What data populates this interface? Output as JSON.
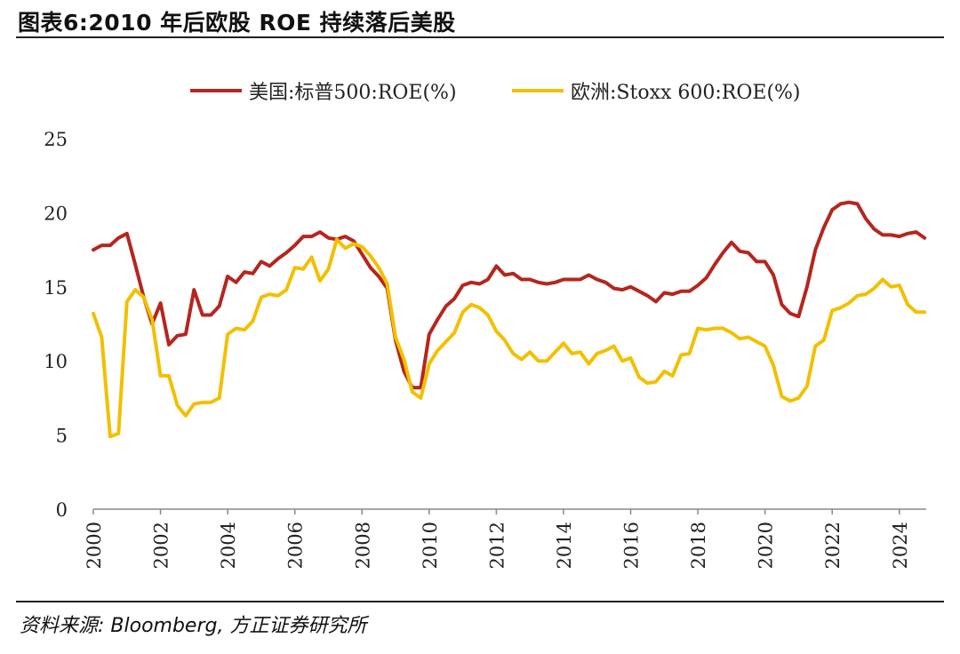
{
  "header": {
    "title": "图表6:2010 年后欧股 ROE 持续落后美股"
  },
  "footer": {
    "source": "资料来源: Bloomberg, 方正证券研究所"
  },
  "chart_data": {
    "type": "line",
    "title": "图表6:2010 年后欧股 ROE 持续落后美股",
    "xlabel": "",
    "ylabel": "",
    "xlim": [
      2000,
      2024.8
    ],
    "ylim": [
      0,
      25
    ],
    "yticks": [
      0,
      5,
      10,
      15,
      20,
      25
    ],
    "xticks": [
      2000,
      2002,
      2004,
      2006,
      2008,
      2010,
      2012,
      2014,
      2016,
      2018,
      2020,
      2022,
      2024
    ],
    "xtick_labels": [
      "2000",
      "2002",
      "2004",
      "2006",
      "2008",
      "2010",
      "2012",
      "2014",
      "2016",
      "2018",
      "2020",
      "2022",
      "2024"
    ],
    "legend_position": "top-center",
    "series": [
      {
        "name": "美国:标普500:ROE(%)",
        "color": "#b5261e",
        "points": [
          [
            2000.0,
            17.5
          ],
          [
            2000.25,
            17.8
          ],
          [
            2000.5,
            17.8
          ],
          [
            2000.75,
            18.3
          ],
          [
            2001.0,
            18.6
          ],
          [
            2001.25,
            16.5
          ],
          [
            2001.5,
            14.3
          ],
          [
            2001.75,
            12.5
          ],
          [
            2002.0,
            13.9
          ],
          [
            2002.25,
            11.1
          ],
          [
            2002.5,
            11.7
          ],
          [
            2002.75,
            11.8
          ],
          [
            2003.0,
            14.8
          ],
          [
            2003.25,
            13.1
          ],
          [
            2003.5,
            13.1
          ],
          [
            2003.75,
            13.7
          ],
          [
            2004.0,
            15.7
          ],
          [
            2004.25,
            15.3
          ],
          [
            2004.5,
            16.0
          ],
          [
            2004.75,
            15.9
          ],
          [
            2005.0,
            16.7
          ],
          [
            2005.25,
            16.4
          ],
          [
            2005.5,
            16.9
          ],
          [
            2005.75,
            17.3
          ],
          [
            2006.0,
            17.8
          ],
          [
            2006.25,
            18.4
          ],
          [
            2006.5,
            18.4
          ],
          [
            2006.75,
            18.7
          ],
          [
            2007.0,
            18.3
          ],
          [
            2007.25,
            18.2
          ],
          [
            2007.5,
            18.4
          ],
          [
            2007.75,
            18.1
          ],
          [
            2008.0,
            17.2
          ],
          [
            2008.25,
            16.3
          ],
          [
            2008.5,
            15.7
          ],
          [
            2008.75,
            14.9
          ],
          [
            2009.0,
            11.4
          ],
          [
            2009.25,
            9.3
          ],
          [
            2009.5,
            8.2
          ],
          [
            2009.75,
            8.2
          ],
          [
            2010.0,
            11.8
          ],
          [
            2010.25,
            12.8
          ],
          [
            2010.5,
            13.7
          ],
          [
            2010.75,
            14.2
          ],
          [
            2011.0,
            15.1
          ],
          [
            2011.25,
            15.3
          ],
          [
            2011.5,
            15.2
          ],
          [
            2011.75,
            15.5
          ],
          [
            2012.0,
            16.4
          ],
          [
            2012.25,
            15.8
          ],
          [
            2012.5,
            15.9
          ],
          [
            2012.75,
            15.5
          ],
          [
            2013.0,
            15.5
          ],
          [
            2013.25,
            15.3
          ],
          [
            2013.5,
            15.2
          ],
          [
            2013.75,
            15.3
          ],
          [
            2014.0,
            15.5
          ],
          [
            2014.25,
            15.5
          ],
          [
            2014.5,
            15.5
          ],
          [
            2014.75,
            15.8
          ],
          [
            2015.0,
            15.5
          ],
          [
            2015.25,
            15.3
          ],
          [
            2015.5,
            14.9
          ],
          [
            2015.75,
            14.8
          ],
          [
            2016.0,
            15.0
          ],
          [
            2016.25,
            14.7
          ],
          [
            2016.5,
            14.4
          ],
          [
            2016.75,
            14.0
          ],
          [
            2017.0,
            14.6
          ],
          [
            2017.25,
            14.5
          ],
          [
            2017.5,
            14.7
          ],
          [
            2017.75,
            14.7
          ],
          [
            2018.0,
            15.1
          ],
          [
            2018.25,
            15.6
          ],
          [
            2018.5,
            16.5
          ],
          [
            2018.75,
            17.3
          ],
          [
            2019.0,
            18.0
          ],
          [
            2019.25,
            17.4
          ],
          [
            2019.5,
            17.3
          ],
          [
            2019.75,
            16.7
          ],
          [
            2020.0,
            16.7
          ],
          [
            2020.25,
            15.8
          ],
          [
            2020.5,
            13.8
          ],
          [
            2020.75,
            13.2
          ],
          [
            2021.0,
            13.0
          ],
          [
            2021.25,
            15.0
          ],
          [
            2021.5,
            17.5
          ],
          [
            2021.75,
            19.0
          ],
          [
            2022.0,
            20.2
          ],
          [
            2022.25,
            20.6
          ],
          [
            2022.5,
            20.7
          ],
          [
            2022.75,
            20.6
          ],
          [
            2023.0,
            19.6
          ],
          [
            2023.25,
            18.9
          ],
          [
            2023.5,
            18.5
          ],
          [
            2023.75,
            18.5
          ],
          [
            2024.0,
            18.4
          ],
          [
            2024.25,
            18.6
          ],
          [
            2024.5,
            18.7
          ],
          [
            2024.75,
            18.3
          ]
        ]
      },
      {
        "name": "欧洲:Stoxx 600:ROE(%)",
        "color": "#f2c000",
        "points": [
          [
            2000.0,
            13.2
          ],
          [
            2000.25,
            11.6
          ],
          [
            2000.5,
            4.9
          ],
          [
            2000.75,
            5.1
          ],
          [
            2001.0,
            14.0
          ],
          [
            2001.25,
            14.8
          ],
          [
            2001.5,
            14.3
          ],
          [
            2001.75,
            12.8
          ],
          [
            2002.0,
            9.0
          ],
          [
            2002.25,
            9.0
          ],
          [
            2002.5,
            7.0
          ],
          [
            2002.75,
            6.3
          ],
          [
            2003.0,
            7.1
          ],
          [
            2003.25,
            7.2
          ],
          [
            2003.5,
            7.2
          ],
          [
            2003.75,
            7.5
          ],
          [
            2004.0,
            11.8
          ],
          [
            2004.25,
            12.2
          ],
          [
            2004.5,
            12.1
          ],
          [
            2004.75,
            12.7
          ],
          [
            2005.0,
            14.3
          ],
          [
            2005.25,
            14.5
          ],
          [
            2005.5,
            14.4
          ],
          [
            2005.75,
            14.8
          ],
          [
            2006.0,
            16.3
          ],
          [
            2006.25,
            16.2
          ],
          [
            2006.5,
            17.0
          ],
          [
            2006.75,
            15.4
          ],
          [
            2007.0,
            16.2
          ],
          [
            2007.25,
            18.2
          ],
          [
            2007.5,
            17.6
          ],
          [
            2007.75,
            17.9
          ],
          [
            2008.0,
            17.7
          ],
          [
            2008.25,
            17.1
          ],
          [
            2008.5,
            16.3
          ],
          [
            2008.75,
            15.2
          ],
          [
            2009.0,
            11.6
          ],
          [
            2009.25,
            10.1
          ],
          [
            2009.5,
            7.9
          ],
          [
            2009.75,
            7.5
          ],
          [
            2010.0,
            9.8
          ],
          [
            2010.25,
            10.7
          ],
          [
            2010.5,
            11.3
          ],
          [
            2010.75,
            11.9
          ],
          [
            2011.0,
            13.3
          ],
          [
            2011.25,
            13.8
          ],
          [
            2011.5,
            13.6
          ],
          [
            2011.75,
            13.1
          ],
          [
            2012.0,
            12.0
          ],
          [
            2012.25,
            11.4
          ],
          [
            2012.5,
            10.5
          ],
          [
            2012.75,
            10.1
          ],
          [
            2013.0,
            10.6
          ],
          [
            2013.25,
            10.0
          ],
          [
            2013.5,
            10.0
          ],
          [
            2013.75,
            10.6
          ],
          [
            2014.0,
            11.2
          ],
          [
            2014.25,
            10.5
          ],
          [
            2014.5,
            10.6
          ],
          [
            2014.75,
            9.8
          ],
          [
            2015.0,
            10.5
          ],
          [
            2015.25,
            10.7
          ],
          [
            2015.5,
            11.0
          ],
          [
            2015.75,
            10.0
          ],
          [
            2016.0,
            10.2
          ],
          [
            2016.25,
            8.9
          ],
          [
            2016.5,
            8.5
          ],
          [
            2016.75,
            8.6
          ],
          [
            2017.0,
            9.3
          ],
          [
            2017.25,
            9.0
          ],
          [
            2017.5,
            10.4
          ],
          [
            2017.75,
            10.5
          ],
          [
            2018.0,
            12.2
          ],
          [
            2018.25,
            12.1
          ],
          [
            2018.5,
            12.2
          ],
          [
            2018.75,
            12.2
          ],
          [
            2019.0,
            11.9
          ],
          [
            2019.25,
            11.5
          ],
          [
            2019.5,
            11.6
          ],
          [
            2019.75,
            11.3
          ],
          [
            2020.0,
            11.0
          ],
          [
            2020.25,
            9.7
          ],
          [
            2020.5,
            7.6
          ],
          [
            2020.75,
            7.3
          ],
          [
            2021.0,
            7.5
          ],
          [
            2021.25,
            8.3
          ],
          [
            2021.5,
            11.0
          ],
          [
            2021.75,
            11.4
          ],
          [
            2022.0,
            13.4
          ],
          [
            2022.25,
            13.6
          ],
          [
            2022.5,
            13.9
          ],
          [
            2022.75,
            14.4
          ],
          [
            2023.0,
            14.5
          ],
          [
            2023.25,
            14.9
          ],
          [
            2023.5,
            15.5
          ],
          [
            2023.75,
            15.0
          ],
          [
            2024.0,
            15.1
          ],
          [
            2024.25,
            13.8
          ],
          [
            2024.5,
            13.3
          ],
          [
            2024.75,
            13.3
          ]
        ]
      }
    ]
  }
}
